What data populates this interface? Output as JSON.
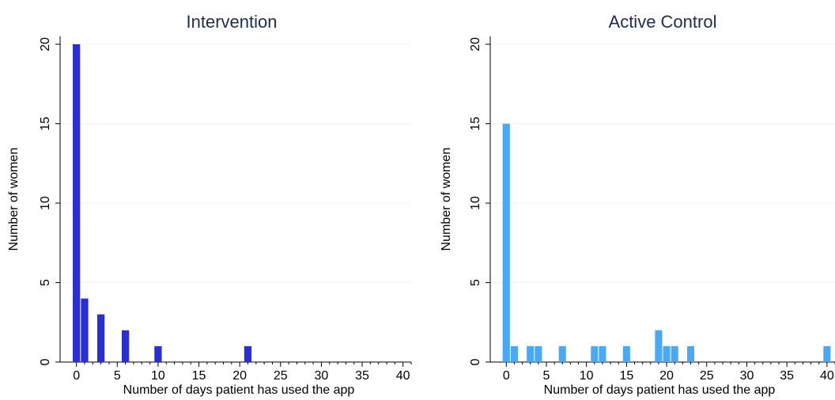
{
  "chart_data": [
    {
      "type": "bar",
      "title": "Intervention",
      "xlabel": "Number of days patient has used the app",
      "ylabel": "Number of women",
      "xlim": [
        -2,
        41
      ],
      "ylim": [
        0,
        20
      ],
      "xticks": [
        "0",
        "5",
        "10",
        "15",
        "20",
        "25",
        "30",
        "35",
        "40"
      ],
      "yticks": [
        "0",
        "5",
        "10",
        "15",
        "20"
      ],
      "grid": true,
      "bar_color": "#2a2fcf",
      "x": [
        0,
        1,
        3,
        6,
        10,
        21
      ],
      "values": [
        20,
        4,
        3,
        2,
        1,
        1
      ]
    },
    {
      "type": "bar",
      "title": "Active Control",
      "xlabel": "Number of days patient has used the app",
      "ylabel": "Number of women",
      "xlim": [
        -2,
        41
      ],
      "ylim": [
        0,
        20
      ],
      "xticks": [
        "0",
        "5",
        "10",
        "15",
        "20",
        "25",
        "30",
        "35",
        "40"
      ],
      "yticks": [
        "0",
        "5",
        "10",
        "15",
        "20"
      ],
      "grid": true,
      "bar_color": "#4aa8f5",
      "x": [
        0,
        1,
        3,
        4,
        7,
        11,
        12,
        15,
        19,
        20,
        21,
        23,
        40
      ],
      "values": [
        15,
        1,
        1,
        1,
        1,
        1,
        1,
        1,
        2,
        1,
        1,
        1,
        1
      ]
    }
  ]
}
